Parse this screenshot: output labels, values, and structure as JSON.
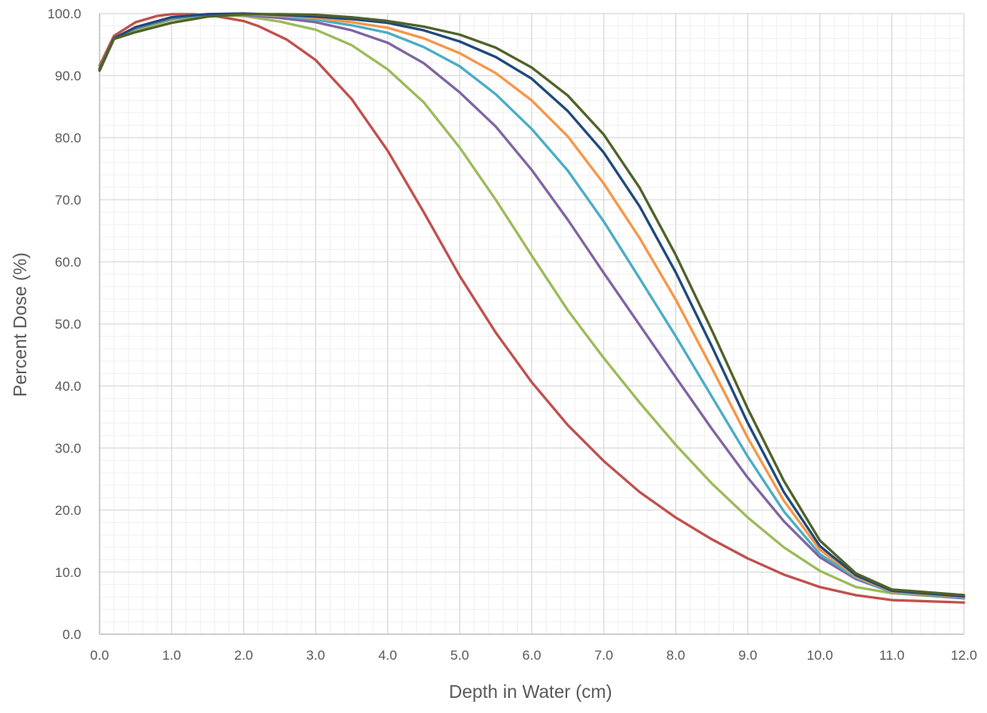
{
  "chart_data": {
    "type": "line",
    "xlabel": "Depth in Water (cm)",
    "ylabel": "Percent Dose (%)",
    "xlim": [
      0,
      12
    ],
    "ylim": [
      0,
      100
    ],
    "x_ticks": [
      "0.0",
      "1.0",
      "2.0",
      "3.0",
      "4.0",
      "5.0",
      "6.0",
      "7.0",
      "8.0",
      "9.0",
      "10.0",
      "11.0",
      "12.0"
    ],
    "y_ticks": [
      "0.0",
      "10.0",
      "20.0",
      "30.0",
      "40.0",
      "50.0",
      "60.0",
      "70.0",
      "80.0",
      "90.0",
      "100.0"
    ],
    "grid": true,
    "minor_grid": true,
    "legend": "none",
    "series": [
      {
        "color": "#c0504d",
        "x": [
          0,
          0.2,
          0.5,
          0.8,
          1.0,
          1.3,
          1.6,
          2.0,
          2.2,
          2.6,
          3.0,
          3.5,
          4.0,
          4.5,
          5.0,
          5.5,
          6.0,
          6.5,
          7.0,
          7.5,
          8.0,
          8.5,
          9.0,
          9.5,
          10.0,
          10.5,
          11.0,
          12.0
        ],
        "y": [
          91.6,
          96.4,
          98.6,
          99.6,
          99.9,
          99.9,
          99.6,
          98.8,
          98.0,
          95.8,
          92.5,
          86.2,
          77.9,
          68.0,
          57.7,
          48.6,
          40.6,
          33.7,
          27.9,
          22.9,
          18.8,
          15.3,
          12.2,
          9.6,
          7.6,
          6.3,
          5.5,
          5.1
        ]
      },
      {
        "color": "#9bbb59",
        "x": [
          0,
          0.2,
          0.5,
          1.0,
          1.5,
          2.0,
          2.5,
          3.0,
          3.5,
          4.0,
          4.5,
          5.0,
          5.5,
          6.0,
          6.5,
          7.0,
          7.5,
          8.0,
          8.5,
          9.0,
          9.5,
          10.0,
          10.5,
          11.0,
          12.0
        ],
        "y": [
          91.2,
          96.0,
          97.4,
          99.0,
          99.7,
          99.6,
          98.7,
          97.4,
          94.9,
          91.0,
          85.7,
          78.4,
          70.0,
          61.0,
          52.2,
          44.5,
          37.3,
          30.5,
          24.3,
          18.8,
          14.0,
          10.2,
          7.6,
          6.6,
          5.8
        ]
      },
      {
        "color": "#8064a2",
        "x": [
          0,
          0.2,
          0.5,
          1.0,
          1.5,
          2.0,
          2.5,
          3.0,
          3.5,
          4.0,
          4.5,
          5.0,
          5.5,
          6.0,
          6.5,
          7.0,
          7.5,
          8.0,
          8.5,
          9.0,
          9.5,
          10.0,
          10.5,
          11.0,
          12.0
        ],
        "y": [
          91.0,
          96.0,
          97.6,
          99.2,
          99.8,
          99.8,
          99.3,
          98.6,
          97.3,
          95.3,
          92.0,
          87.3,
          81.8,
          74.8,
          66.8,
          58.2,
          49.8,
          41.4,
          33.1,
          25.2,
          18.2,
          12.4,
          8.9,
          6.8,
          5.8
        ]
      },
      {
        "color": "#4bacc6",
        "x": [
          0,
          0.2,
          0.5,
          1.0,
          1.5,
          2.0,
          2.5,
          3.0,
          3.5,
          4.0,
          4.5,
          5.0,
          5.5,
          6.0,
          6.5,
          7.0,
          7.5,
          8.0,
          8.5,
          9.0,
          9.5,
          10.0,
          10.5,
          11.0,
          12.0
        ],
        "y": [
          91.0,
          96.0,
          97.7,
          99.3,
          99.8,
          99.9,
          99.6,
          99.0,
          98.1,
          96.9,
          94.6,
          91.5,
          87.0,
          81.4,
          74.7,
          66.5,
          57.3,
          48.0,
          38.3,
          28.6,
          19.8,
          12.9,
          9.1,
          6.8,
          5.9
        ]
      },
      {
        "color": "#f79646",
        "x": [
          0,
          0.2,
          0.5,
          1.0,
          1.5,
          2.0,
          2.5,
          3.0,
          3.5,
          4.0,
          4.5,
          5.0,
          5.5,
          6.0,
          6.5,
          7.0,
          7.5,
          8.0,
          8.5,
          9.0,
          9.5,
          10.0,
          10.5,
          11.0,
          12.0
        ],
        "y": [
          91.0,
          96.0,
          97.8,
          99.4,
          99.9,
          99.9,
          99.7,
          99.3,
          98.6,
          97.7,
          96.0,
          93.6,
          90.4,
          86.0,
          80.2,
          72.6,
          63.8,
          53.9,
          42.9,
          31.6,
          21.5,
          13.6,
          9.3,
          6.9,
          6.0
        ]
      },
      {
        "color": "#1f497d",
        "x": [
          0,
          0.2,
          0.5,
          1.0,
          1.5,
          2.0,
          2.5,
          3.0,
          3.5,
          4.0,
          4.5,
          5.0,
          5.5,
          6.0,
          6.5,
          7.0,
          7.5,
          8.0,
          8.5,
          9.0,
          9.5,
          10.0,
          10.5,
          11.0,
          12.0
        ],
        "y": [
          91.0,
          96.0,
          97.8,
          99.4,
          99.9,
          100.0,
          99.8,
          99.5,
          99.1,
          98.5,
          97.3,
          95.5,
          93.0,
          89.5,
          84.3,
          77.6,
          68.9,
          58.3,
          46.4,
          34.0,
          22.9,
          14.2,
          9.5,
          7.0,
          6.1
        ]
      },
      {
        "color": "#4f6228",
        "x": [
          0,
          0.2,
          0.5,
          1.0,
          1.5,
          2.0,
          2.5,
          3.0,
          3.5,
          4.0,
          4.5,
          5.0,
          5.5,
          6.0,
          6.5,
          7.0,
          7.5,
          8.0,
          8.5,
          9.0,
          9.5,
          10.0,
          10.5,
          11.0,
          12.0
        ],
        "y": [
          90.8,
          95.9,
          97.0,
          98.5,
          99.5,
          99.9,
          99.9,
          99.8,
          99.4,
          98.8,
          97.9,
          96.6,
          94.5,
          91.3,
          86.8,
          80.5,
          71.9,
          61.1,
          49.0,
          36.3,
          24.7,
          15.1,
          9.8,
          7.2,
          6.3
        ]
      }
    ]
  }
}
